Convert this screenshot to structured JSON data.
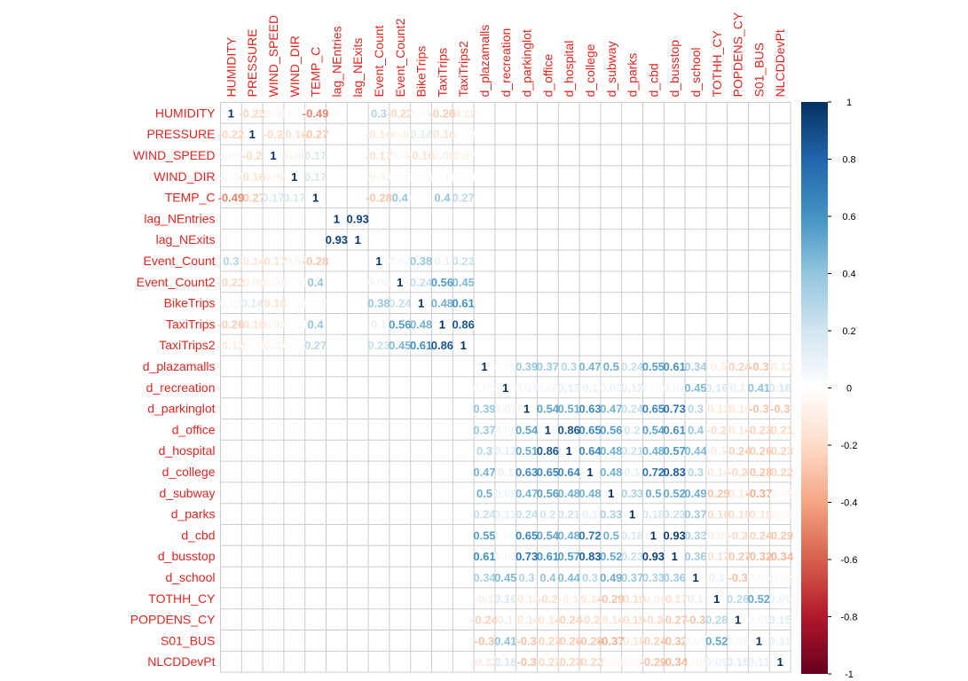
{
  "chart_data": {
    "type": "heatmap",
    "variables": [
      "HUMIDITY",
      "PRESSURE",
      "WIND_SPEED",
      "WIND_DIR",
      "TEMP_C",
      "lag_NEntries",
      "lag_NExits",
      "Event_Count",
      "Event_Count2",
      "BikeTrips",
      "TaxiTrips",
      "TaxiTrips2",
      "d_plazamalls",
      "d_recreation",
      "d_parkinglot",
      "d_office",
      "d_hospital",
      "d_college",
      "d_subway",
      "d_parks",
      "d_cbd",
      "d_busstop",
      "d_school",
      "TOTHH_CY",
      "POPDENS_CY",
      "S01_BUS",
      "NLCDDevPt"
    ],
    "matrix": [
      [
        1,
        -0.22,
        -0.05,
        -0.04,
        -0.49,
        0,
        0,
        0.3,
        -0.22,
        0.05,
        -0.26,
        -0.12,
        0,
        0,
        0,
        0,
        0,
        0,
        0,
        0,
        0,
        0,
        0,
        0,
        0,
        0,
        0
      ],
      [
        -0.22,
        1,
        -0.2,
        -0.16,
        -0.27,
        0,
        0,
        -0.14,
        -0.08,
        0.14,
        -0.16,
        -0.03,
        0,
        0,
        0,
        0,
        0,
        0,
        0,
        0,
        0,
        0,
        0,
        0,
        0,
        0,
        0
      ],
      [
        -0.05,
        -0.2,
        1,
        -0.08,
        0.17,
        0,
        0,
        -0.17,
        -0.05,
        -0.16,
        -0.08,
        -0.07,
        0,
        0,
        0,
        0,
        0,
        0,
        0,
        0,
        0,
        0,
        0,
        0,
        0,
        0,
        0
      ],
      [
        -0.04,
        -0.16,
        -0.08,
        1,
        0.17,
        0,
        0,
        -0.07,
        -0.02,
        -0.02,
        -0.01,
        -0.01,
        0,
        0,
        0,
        0,
        0,
        0,
        0,
        0,
        0,
        0,
        0,
        0,
        0,
        0,
        0
      ],
      [
        -0.49,
        -0.27,
        0.17,
        0.17,
        1,
        0,
        0,
        -0.28,
        0.4,
        0.02,
        0.4,
        0.27,
        0,
        0,
        0,
        0,
        0,
        0,
        0,
        0,
        0,
        0,
        0,
        0,
        0,
        0,
        0
      ],
      [
        0,
        0,
        0,
        0,
        0,
        1,
        0.93,
        0,
        0,
        0,
        0,
        0,
        0,
        0,
        0,
        0,
        0,
        0,
        0,
        0,
        0,
        0,
        0,
        0,
        0,
        0,
        0
      ],
      [
        0,
        0,
        0,
        0,
        0,
        0.93,
        1,
        0,
        0,
        0,
        0,
        0,
        0,
        0,
        0,
        0,
        0,
        0,
        0,
        0,
        0,
        0,
        0,
        0,
        0,
        0,
        0
      ],
      [
        0.3,
        -0.14,
        -0.17,
        -0.07,
        -0.28,
        0,
        0,
        1,
        0.06,
        0.38,
        0.1,
        0.23,
        0,
        0,
        0,
        0,
        0,
        0,
        0,
        0,
        0,
        0,
        0,
        0,
        0,
        0,
        0
      ],
      [
        -0.22,
        -0.08,
        -0.05,
        -0.02,
        0.4,
        0,
        0,
        0.06,
        1,
        0.24,
        0.56,
        0.45,
        0,
        0,
        0,
        0,
        0,
        0,
        0,
        0,
        0,
        0,
        0,
        0,
        0,
        0,
        0
      ],
      [
        0.05,
        0.14,
        -0.16,
        -0.02,
        0.02,
        0,
        0,
        0.38,
        0.24,
        1,
        0.48,
        0.61,
        0,
        0,
        0,
        0,
        0,
        0,
        0,
        0,
        0,
        0,
        0,
        0,
        0,
        0,
        0
      ],
      [
        -0.26,
        -0.16,
        -0.08,
        -0.01,
        0.4,
        0,
        0,
        0.1,
        0.56,
        0.48,
        1,
        0.86,
        0,
        0,
        0,
        0,
        0,
        0,
        0,
        0,
        0,
        0,
        0,
        0,
        0,
        0,
        0
      ],
      [
        -0.12,
        -0.03,
        -0.07,
        -0.01,
        0.27,
        0,
        0,
        0.23,
        0.45,
        0.61,
        0.86,
        1,
        0,
        0,
        0,
        0,
        0,
        0,
        0,
        0,
        0,
        0,
        0,
        0,
        0,
        0,
        0
      ],
      [
        0,
        0,
        0,
        0,
        0,
        0,
        0,
        0,
        0,
        0,
        0,
        0,
        1,
        0.05,
        0.39,
        0.37,
        0.3,
        0.47,
        0.5,
        0.24,
        0.55,
        0.61,
        0.34,
        -0.1,
        -0.24,
        -0.3,
        -0.12
      ],
      [
        0,
        0,
        0,
        0,
        0,
        0,
        0,
        0,
        0,
        0,
        0,
        0,
        0.05,
        1,
        0.07,
        0.06,
        0.13,
        0.1,
        0.09,
        0.12,
        0.03,
        0.06,
        0.45,
        0.16,
        0.1,
        0.41,
        0.18
      ],
      [
        0,
        0,
        0,
        0,
        0,
        0,
        0,
        0,
        0,
        0,
        0,
        0,
        0.39,
        0.07,
        1,
        0.54,
        0.51,
        0.63,
        0.47,
        0.24,
        0.65,
        0.73,
        0.3,
        -0.12,
        -0.14,
        -0.3,
        -0.3
      ],
      [
        0,
        0,
        0,
        0,
        0,
        0,
        0,
        0,
        0,
        0,
        0,
        0,
        0.37,
        0.06,
        0.54,
        1,
        0.86,
        0.65,
        0.56,
        0.2,
        0.54,
        0.61,
        0.4,
        -0.2,
        -0.14,
        -0.23,
        -0.21
      ],
      [
        0,
        0,
        0,
        0,
        0,
        0,
        0,
        0,
        0,
        0,
        0,
        0,
        0.3,
        0.13,
        0.51,
        0.86,
        1,
        0.64,
        0.48,
        0.21,
        0.48,
        0.57,
        0.44,
        -0.1,
        -0.24,
        -0.26,
        -0.23
      ],
      [
        0,
        0,
        0,
        0,
        0,
        0,
        0,
        0,
        0,
        0,
        0,
        0,
        0.47,
        0.1,
        0.63,
        0.65,
        0.64,
        1,
        0.48,
        0.1,
        0.72,
        0.83,
        0.3,
        -0.14,
        -0.2,
        -0.28,
        -0.22
      ],
      [
        0,
        0,
        0,
        0,
        0,
        0,
        0,
        0,
        0,
        0,
        0,
        0,
        0.5,
        0.09,
        0.47,
        0.56,
        0.48,
        0.48,
        1,
        0.33,
        0.5,
        0.52,
        0.49,
        -0.29,
        -0.14,
        -0.37,
        -0.05
      ],
      [
        0,
        0,
        0,
        0,
        0,
        0,
        0,
        0,
        0,
        0,
        0,
        0,
        0.24,
        0.12,
        0.24,
        0.2,
        0.21,
        0.1,
        0.33,
        1,
        0.18,
        0.23,
        0.37,
        -0.19,
        -0.19,
        -0.15,
        -0.05
      ],
      [
        0,
        0,
        0,
        0,
        0,
        0,
        0,
        0,
        0,
        0,
        0,
        0,
        0.55,
        0.03,
        0.65,
        0.54,
        0.48,
        0.72,
        0.5,
        0.18,
        1,
        0.93,
        0.33,
        -0.09,
        -0.2,
        -0.24,
        -0.29
      ],
      [
        0,
        0,
        0,
        0,
        0,
        0,
        0,
        0,
        0,
        0,
        0,
        0,
        0.61,
        0.06,
        0.73,
        0.61,
        0.57,
        0.83,
        0.52,
        0.23,
        0.93,
        1,
        0.36,
        -0.17,
        -0.27,
        -0.32,
        -0.34
      ],
      [
        0,
        0,
        0,
        0,
        0,
        0,
        0,
        0,
        0,
        0,
        0,
        0,
        0.34,
        0.45,
        0.3,
        0.4,
        0.44,
        0.3,
        0.49,
        0.37,
        0.33,
        0.36,
        1,
        0.1,
        -0.3,
        0.05,
        -0.05
      ],
      [
        0,
        0,
        0,
        0,
        0,
        0,
        0,
        0,
        0,
        0,
        0,
        0,
        -0.1,
        0.16,
        -0.12,
        -0.2,
        -0.1,
        -0.14,
        -0.29,
        -0.19,
        -0.09,
        -0.17,
        0.1,
        1,
        0.28,
        0.52,
        0.09
      ],
      [
        0,
        0,
        0,
        0,
        0,
        0,
        0,
        0,
        0,
        0,
        0,
        0,
        -0.24,
        0.1,
        -0.14,
        -0.14,
        -0.24,
        -0.2,
        -0.14,
        -0.19,
        -0.2,
        -0.27,
        -0.3,
        0.28,
        1,
        0.06,
        0.15
      ],
      [
        0,
        0,
        0,
        0,
        0,
        0,
        0,
        0,
        0,
        0,
        0,
        0,
        -0.3,
        0.41,
        -0.3,
        -0.23,
        -0.26,
        -0.28,
        -0.37,
        -0.15,
        -0.24,
        -0.32,
        0.05,
        0.52,
        0.06,
        1,
        0.11
      ],
      [
        0,
        0,
        0,
        0,
        0,
        0,
        0,
        0,
        0,
        0,
        0,
        0,
        -0.12,
        0.18,
        -0.3,
        -0.21,
        -0.23,
        -0.22,
        -0.05,
        -0.05,
        -0.29,
        -0.34,
        -0.05,
        0.09,
        0.15,
        0.11,
        1
      ]
    ],
    "color_scale": {
      "min": -1,
      "max": 1,
      "low_color": "#67001F",
      "mid_color": "#FFFFFF",
      "high_color": "#053061"
    },
    "legend_ticks": [
      "1",
      "0.8",
      "0.6",
      "0.4",
      "0.2",
      "0",
      "-0.2",
      "-0.4",
      "-0.6",
      "-0.8",
      "-1"
    ],
    "legend_placement": "right",
    "label_color": "#E8231F",
    "grid": true
  }
}
